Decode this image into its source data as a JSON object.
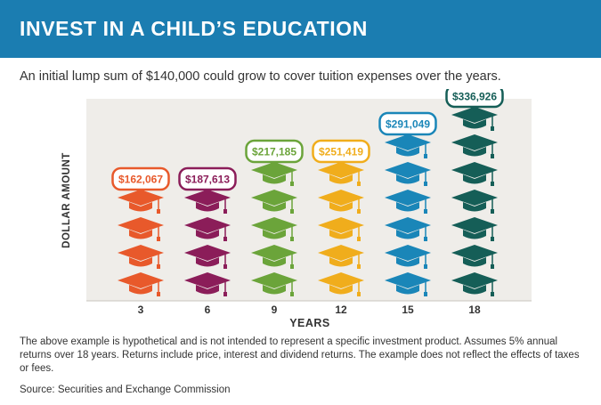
{
  "header": {
    "title": "INVEST IN A CHILD’S EDUCATION"
  },
  "subtitle": "An initial lump sum of $140,000 could grow to cover tuition expenses over the years.",
  "chart_data": {
    "type": "bar",
    "title": "",
    "xlabel": "YEARS",
    "ylabel": "DOLLAR AMOUNT",
    "categories": [
      "3",
      "6",
      "9",
      "12",
      "15",
      "18"
    ],
    "values": [
      162067,
      187613,
      217185,
      251419,
      291049,
      336926
    ],
    "value_labels": [
      "$162,067",
      "$187,613",
      "$217,185",
      "$251,419",
      "$291,049",
      "$336,926"
    ],
    "colors": [
      "#e8592b",
      "#8b1d59",
      "#6ba43a",
      "#f0ad1c",
      "#1a86b8",
      "#155e57"
    ],
    "grid": false,
    "legend": "none",
    "cap_unit_value": 50000
  },
  "footnote": "The above example is hypothetical and is not intended to represent a specific investment product. Assumes 5% annual returns over 18 years. Returns include price, interest and dividend returns. The example does not reflect the effects of taxes or fees.",
  "source": "Source: Securities and Exchange Commission"
}
